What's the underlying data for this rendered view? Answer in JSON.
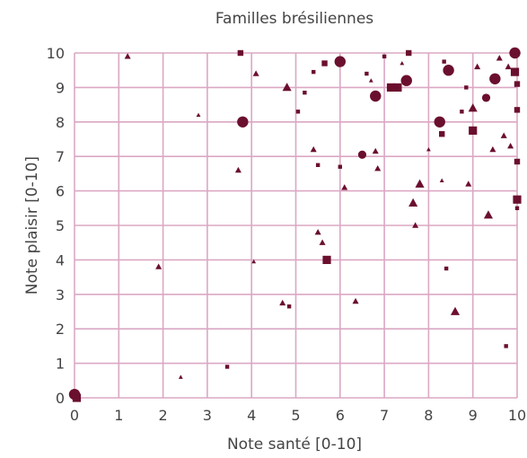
{
  "chart_data": {
    "type": "scatter",
    "title": "Familles brésiliennes",
    "xlabel": "Note santé [0-10]",
    "ylabel": "Note plaisir [0-10]",
    "xlim": [
      0,
      10
    ],
    "ylim": [
      0,
      10
    ],
    "x_ticks": [
      "0",
      "1",
      "2",
      "3",
      "4",
      "5",
      "6",
      "7",
      "8",
      "9",
      "10"
    ],
    "y_ticks": [
      "0",
      "1",
      "2",
      "3",
      "4",
      "5",
      "6",
      "7",
      "8",
      "9",
      "10"
    ],
    "grid": true,
    "colors": {
      "marker": "#6b0f2e",
      "grid": "#dba8c4",
      "text": "#444444"
    },
    "points": [
      {
        "x": 0.0,
        "y": 0.1,
        "shape": "circle",
        "size": "large"
      },
      {
        "x": 0.05,
        "y": 0.0,
        "shape": "square",
        "size": "medium"
      },
      {
        "x": 1.2,
        "y": 9.9,
        "shape": "triangle",
        "size": "small"
      },
      {
        "x": 1.9,
        "y": 3.8,
        "shape": "triangle",
        "size": "small"
      },
      {
        "x": 2.4,
        "y": 0.6,
        "shape": "triangle",
        "size": "tiny"
      },
      {
        "x": 2.8,
        "y": 8.2,
        "shape": "triangle",
        "size": "tiny"
      },
      {
        "x": 3.45,
        "y": 0.9,
        "shape": "square",
        "size": "tiny"
      },
      {
        "x": 3.7,
        "y": 6.6,
        "shape": "triangle",
        "size": "small"
      },
      {
        "x": 3.75,
        "y": 10.0,
        "shape": "square",
        "size": "small"
      },
      {
        "x": 3.8,
        "y": 8.0,
        "shape": "circle",
        "size": "large"
      },
      {
        "x": 4.05,
        "y": 3.95,
        "shape": "triangle",
        "size": "tiny"
      },
      {
        "x": 4.1,
        "y": 9.4,
        "shape": "triangle",
        "size": "small"
      },
      {
        "x": 4.7,
        "y": 2.75,
        "shape": "triangle",
        "size": "small"
      },
      {
        "x": 4.8,
        "y": 9.0,
        "shape": "triangle",
        "size": "medium"
      },
      {
        "x": 4.85,
        "y": 2.65,
        "shape": "square",
        "size": "tiny"
      },
      {
        "x": 5.05,
        "y": 8.3,
        "shape": "square",
        "size": "tiny"
      },
      {
        "x": 5.2,
        "y": 8.85,
        "shape": "square",
        "size": "tiny"
      },
      {
        "x": 5.4,
        "y": 7.2,
        "shape": "triangle",
        "size": "small"
      },
      {
        "x": 5.4,
        "y": 9.45,
        "shape": "square",
        "size": "tiny"
      },
      {
        "x": 5.5,
        "y": 4.8,
        "shape": "triangle",
        "size": "small"
      },
      {
        "x": 5.5,
        "y": 6.75,
        "shape": "square",
        "size": "tiny"
      },
      {
        "x": 5.6,
        "y": 4.5,
        "shape": "triangle",
        "size": "small"
      },
      {
        "x": 5.65,
        "y": 9.7,
        "shape": "square",
        "size": "small"
      },
      {
        "x": 5.7,
        "y": 4.0,
        "shape": "square",
        "size": "medium"
      },
      {
        "x": 6.0,
        "y": 9.75,
        "shape": "circle",
        "size": "large"
      },
      {
        "x": 6.0,
        "y": 6.7,
        "shape": "square",
        "size": "tiny"
      },
      {
        "x": 6.1,
        "y": 6.1,
        "shape": "triangle",
        "size": "small"
      },
      {
        "x": 6.35,
        "y": 2.8,
        "shape": "triangle",
        "size": "small"
      },
      {
        "x": 6.5,
        "y": 7.05,
        "shape": "circle",
        "size": "medium"
      },
      {
        "x": 6.6,
        "y": 9.4,
        "shape": "square",
        "size": "tiny"
      },
      {
        "x": 6.7,
        "y": 9.2,
        "shape": "triangle",
        "size": "tiny"
      },
      {
        "x": 6.8,
        "y": 8.75,
        "shape": "circle",
        "size": "large"
      },
      {
        "x": 6.8,
        "y": 7.15,
        "shape": "triangle",
        "size": "small"
      },
      {
        "x": 6.85,
        "y": 6.65,
        "shape": "triangle",
        "size": "small"
      },
      {
        "x": 7.0,
        "y": 9.9,
        "shape": "square",
        "size": "tiny"
      },
      {
        "x": 7.15,
        "y": 9.0,
        "shape": "square",
        "size": "medium"
      },
      {
        "x": 7.3,
        "y": 9.0,
        "shape": "square",
        "size": "medium"
      },
      {
        "x": 7.4,
        "y": 9.7,
        "shape": "triangle",
        "size": "tiny"
      },
      {
        "x": 7.5,
        "y": 9.2,
        "shape": "circle",
        "size": "large"
      },
      {
        "x": 7.55,
        "y": 10.0,
        "shape": "square",
        "size": "small"
      },
      {
        "x": 7.65,
        "y": 5.65,
        "shape": "triangle",
        "size": "medium"
      },
      {
        "x": 7.7,
        "y": 5.0,
        "shape": "triangle",
        "size": "small"
      },
      {
        "x": 7.8,
        "y": 6.2,
        "shape": "triangle",
        "size": "medium"
      },
      {
        "x": 8.0,
        "y": 7.2,
        "shape": "triangle",
        "size": "tiny"
      },
      {
        "x": 8.25,
        "y": 8.0,
        "shape": "circle",
        "size": "large"
      },
      {
        "x": 8.3,
        "y": 7.65,
        "shape": "square",
        "size": "small"
      },
      {
        "x": 8.3,
        "y": 6.3,
        "shape": "triangle",
        "size": "tiny"
      },
      {
        "x": 8.4,
        "y": 3.75,
        "shape": "square",
        "size": "tiny"
      },
      {
        "x": 8.35,
        "y": 9.75,
        "shape": "square",
        "size": "tiny"
      },
      {
        "x": 8.45,
        "y": 9.5,
        "shape": "circle",
        "size": "large"
      },
      {
        "x": 8.6,
        "y": 2.5,
        "shape": "triangle",
        "size": "medium"
      },
      {
        "x": 8.75,
        "y": 8.3,
        "shape": "square",
        "size": "tiny"
      },
      {
        "x": 8.85,
        "y": 9.0,
        "shape": "square",
        "size": "tiny"
      },
      {
        "x": 8.9,
        "y": 6.2,
        "shape": "triangle",
        "size": "small"
      },
      {
        "x": 9.0,
        "y": 8.4,
        "shape": "triangle",
        "size": "medium"
      },
      {
        "x": 9.0,
        "y": 7.75,
        "shape": "square",
        "size": "medium"
      },
      {
        "x": 9.1,
        "y": 9.6,
        "shape": "triangle",
        "size": "small"
      },
      {
        "x": 9.3,
        "y": 8.7,
        "shape": "circle",
        "size": "medium"
      },
      {
        "x": 9.35,
        "y": 5.3,
        "shape": "triangle",
        "size": "medium"
      },
      {
        "x": 9.45,
        "y": 7.2,
        "shape": "triangle",
        "size": "small"
      },
      {
        "x": 9.5,
        "y": 9.25,
        "shape": "circle",
        "size": "large"
      },
      {
        "x": 9.6,
        "y": 9.85,
        "shape": "triangle",
        "size": "small"
      },
      {
        "x": 9.7,
        "y": 7.6,
        "shape": "triangle",
        "size": "small"
      },
      {
        "x": 9.75,
        "y": 1.5,
        "shape": "square",
        "size": "tiny"
      },
      {
        "x": 9.8,
        "y": 9.6,
        "shape": "triangle",
        "size": "small"
      },
      {
        "x": 9.85,
        "y": 7.3,
        "shape": "triangle",
        "size": "small"
      },
      {
        "x": 9.95,
        "y": 10.0,
        "shape": "circle",
        "size": "large"
      },
      {
        "x": 9.95,
        "y": 9.45,
        "shape": "square",
        "size": "medium"
      },
      {
        "x": 10.0,
        "y": 8.35,
        "shape": "square",
        "size": "small"
      },
      {
        "x": 10.0,
        "y": 6.85,
        "shape": "square",
        "size": "small"
      },
      {
        "x": 10.0,
        "y": 5.75,
        "shape": "square",
        "size": "medium"
      },
      {
        "x": 10.0,
        "y": 5.5,
        "shape": "square",
        "size": "tiny"
      },
      {
        "x": 10.0,
        "y": 9.1,
        "shape": "square",
        "size": "small"
      }
    ]
  }
}
